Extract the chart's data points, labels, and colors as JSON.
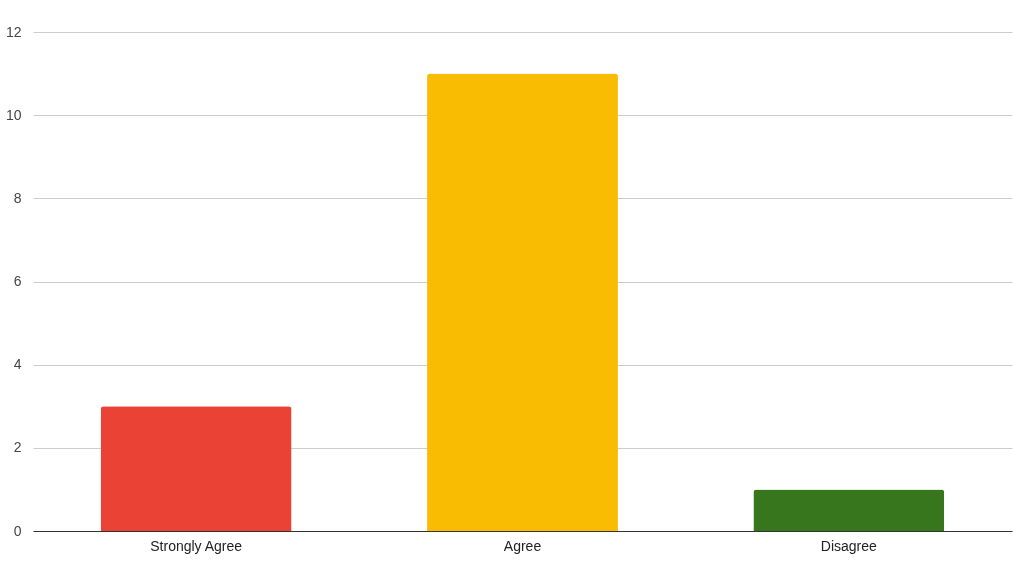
{
  "chart_data": {
    "type": "bar",
    "categories": [
      "Strongly Agree",
      "Agree",
      "Disagree"
    ],
    "values": [
      3,
      11,
      1
    ],
    "colors": [
      "#ea4335",
      "#f9bc02",
      "#38761d"
    ],
    "ylim": [
      0,
      12
    ],
    "yticks": [
      0,
      2,
      4,
      6,
      8,
      10,
      12
    ],
    "grid": "y",
    "legend": false
  }
}
